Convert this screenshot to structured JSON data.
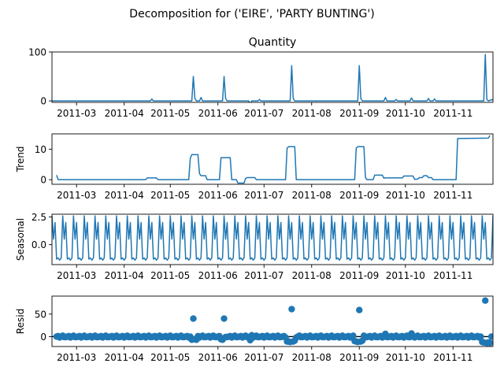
{
  "figure": {
    "suptitle": "Decomposition for ('EIRE', 'PARTY BUNTING')"
  },
  "chart_data": [
    {
      "type": "line",
      "panel": "observed",
      "title": "Quantity",
      "ylabel": "",
      "ylim": [
        -3,
        100
      ],
      "yticks": [
        0,
        100
      ],
      "xlim": [
        "2011-02-13",
        "2011-11-27"
      ],
      "xticks": [
        "2011-03",
        "2011-04",
        "2011-05",
        "2011-06",
        "2011-07",
        "2011-08",
        "2011-09",
        "2011-10",
        "2011-11"
      ],
      "color": "#1f77b4",
      "points": [
        [
          "2011-02-13",
          0
        ],
        [
          "2011-04-18",
          0
        ],
        [
          "2011-04-19",
          4
        ],
        [
          "2011-04-20",
          0
        ],
        [
          "2011-05-15",
          0
        ],
        [
          "2011-05-16",
          50
        ],
        [
          "2011-05-17",
          5
        ],
        [
          "2011-05-18",
          0
        ],
        [
          "2011-05-20",
          0
        ],
        [
          "2011-05-21",
          7
        ],
        [
          "2011-05-22",
          0
        ],
        [
          "2011-06-04",
          0
        ],
        [
          "2011-06-05",
          50
        ],
        [
          "2011-06-06",
          5
        ],
        [
          "2011-06-07",
          0
        ],
        [
          "2011-06-21",
          0
        ],
        [
          "2011-06-22",
          -8
        ],
        [
          "2011-06-23",
          0
        ],
        [
          "2011-06-27",
          0
        ],
        [
          "2011-06-28",
          3
        ],
        [
          "2011-06-29",
          0
        ],
        [
          "2011-07-18",
          0
        ],
        [
          "2011-07-19",
          72
        ],
        [
          "2011-07-20",
          5
        ],
        [
          "2011-07-21",
          0
        ],
        [
          "2011-08-31",
          0
        ],
        [
          "2011-09-01",
          72
        ],
        [
          "2011-09-02",
          5
        ],
        [
          "2011-09-03",
          0
        ],
        [
          "2011-09-17",
          0
        ],
        [
          "2011-09-18",
          7
        ],
        [
          "2011-09-19",
          0
        ],
        [
          "2011-09-24",
          0
        ],
        [
          "2011-09-25",
          3
        ],
        [
          "2011-09-26",
          0
        ],
        [
          "2011-10-04",
          0
        ],
        [
          "2011-10-05",
          6
        ],
        [
          "2011-10-06",
          0
        ],
        [
          "2011-10-15",
          0
        ],
        [
          "2011-10-16",
          5
        ],
        [
          "2011-10-17",
          0
        ],
        [
          "2011-10-19",
          0
        ],
        [
          "2011-10-20",
          4
        ],
        [
          "2011-10-21",
          0
        ],
        [
          "2011-11-21",
          0
        ],
        [
          "2011-11-22",
          95
        ],
        [
          "2011-11-23",
          3
        ],
        [
          "2011-11-24",
          0
        ],
        [
          "2011-11-27",
          3
        ]
      ]
    },
    {
      "type": "line",
      "panel": "trend",
      "title": "",
      "ylabel": "Trend",
      "ylim": [
        -1.5,
        15
      ],
      "yticks": [
        0,
        10
      ],
      "xlim": [
        "2011-02-13",
        "2011-11-27"
      ],
      "xticks": [
        "2011-03",
        "2011-04",
        "2011-05",
        "2011-06",
        "2011-07",
        "2011-08",
        "2011-09",
        "2011-10",
        "2011-11"
      ],
      "color": "#1f77b4",
      "points": [
        [
          "2011-02-16",
          1.5
        ],
        [
          "2011-02-17",
          0
        ],
        [
          "2011-04-15",
          0
        ],
        [
          "2011-04-16",
          0.6
        ],
        [
          "2011-04-22",
          0.6
        ],
        [
          "2011-04-23",
          0
        ],
        [
          "2011-05-13",
          0
        ],
        [
          "2011-05-14",
          7
        ],
        [
          "2011-05-15",
          8.2
        ],
        [
          "2011-05-19",
          8.2
        ],
        [
          "2011-05-20",
          2
        ],
        [
          "2011-05-21",
          1.3
        ],
        [
          "2011-05-24",
          1.3
        ],
        [
          "2011-05-25",
          0
        ],
        [
          "2011-06-02",
          0
        ],
        [
          "2011-06-03",
          7.2
        ],
        [
          "2011-06-09",
          7.2
        ],
        [
          "2011-06-10",
          0
        ],
        [
          "2011-06-13",
          0
        ],
        [
          "2011-06-14",
          -1.1
        ],
        [
          "2011-06-18",
          -1.1
        ],
        [
          "2011-06-19",
          0.4
        ],
        [
          "2011-06-20",
          0.7
        ],
        [
          "2011-06-25",
          0.7
        ],
        [
          "2011-06-26",
          0
        ],
        [
          "2011-07-15",
          0
        ],
        [
          "2011-07-16",
          10.3
        ],
        [
          "2011-07-17",
          10.8
        ],
        [
          "2011-07-21",
          10.8
        ],
        [
          "2011-07-22",
          0
        ],
        [
          "2011-08-29",
          0
        ],
        [
          "2011-08-30",
          10.3
        ],
        [
          "2011-08-31",
          10.8
        ],
        [
          "2011-09-04",
          10.8
        ],
        [
          "2011-09-05",
          0.7
        ],
        [
          "2011-09-06",
          0
        ],
        [
          "2011-09-10",
          0
        ],
        [
          "2011-09-11",
          1.5
        ],
        [
          "2011-09-16",
          1.5
        ],
        [
          "2011-09-17",
          0.5
        ],
        [
          "2011-09-18",
          0.6
        ],
        [
          "2011-09-29",
          0.6
        ],
        [
          "2011-09-30",
          1.2
        ],
        [
          "2011-10-06",
          1.2
        ],
        [
          "2011-10-07",
          0.1
        ],
        [
          "2011-10-09",
          0.2
        ],
        [
          "2011-10-10",
          0.7
        ],
        [
          "2011-10-12",
          0.7
        ],
        [
          "2011-10-13",
          1.3
        ],
        [
          "2011-10-15",
          1.3
        ],
        [
          "2011-10-16",
          0.7
        ],
        [
          "2011-10-18",
          0.7
        ],
        [
          "2011-10-19",
          0
        ],
        [
          "2011-11-03",
          0
        ],
        [
          "2011-11-04",
          13.5
        ],
        [
          "2011-11-24",
          13.6
        ],
        [
          "2011-11-25",
          14.5
        ]
      ]
    },
    {
      "type": "line",
      "panel": "seasonal",
      "title": "",
      "ylabel": "Seasonal",
      "ylim": [
        -1.8,
        2.75
      ],
      "yticks": [
        0.0,
        2.5
      ],
      "ytick_labels": [
        "0.0",
        "2.5"
      ],
      "xlim": [
        "2011-02-13",
        "2011-11-27"
      ],
      "xticks": [
        "2011-03",
        "2011-04",
        "2011-05",
        "2011-06",
        "2011-07",
        "2011-08",
        "2011-09",
        "2011-10",
        "2011-11"
      ],
      "color": "#1f77b4",
      "start": "2011-02-13",
      "end": "2011-11-27",
      "pattern": [
        2.6,
        0.5,
        2.0,
        -1.3,
        -1.2,
        -1.4,
        -1.2
      ]
    },
    {
      "type": "scatter",
      "panel": "resid",
      "title": "",
      "ylabel": "Resid",
      "ylim": [
        -22,
        90
      ],
      "yticks": [
        0,
        50
      ],
      "xlim": [
        "2011-02-13",
        "2011-11-27"
      ],
      "xticks": [
        "2011-03",
        "2011-04",
        "2011-05",
        "2011-06",
        "2011-07",
        "2011-08",
        "2011-09",
        "2011-10",
        "2011-11"
      ],
      "color": "#1f77b4",
      "baseline": 0,
      "start": "2011-02-16",
      "end": "2011-11-26",
      "pattern": [
        0,
        1,
        -2,
        0,
        2,
        -1,
        -1
      ],
      "highlights": [
        [
          "2011-05-16",
          40
        ],
        [
          "2011-05-15",
          -7
        ],
        [
          "2011-05-17",
          -6
        ],
        [
          "2011-05-18",
          -7
        ],
        [
          "2011-06-05",
          40
        ],
        [
          "2011-06-03",
          -6
        ],
        [
          "2011-06-04",
          -7
        ],
        [
          "2011-06-22",
          -8
        ],
        [
          "2011-06-23",
          3
        ],
        [
          "2011-07-19",
          61
        ],
        [
          "2011-07-16",
          -11
        ],
        [
          "2011-07-17",
          -11
        ],
        [
          "2011-07-18",
          -12
        ],
        [
          "2011-07-20",
          -11
        ],
        [
          "2011-07-21",
          -9
        ],
        [
          "2011-09-01",
          59
        ],
        [
          "2011-08-29",
          -10
        ],
        [
          "2011-08-30",
          -11
        ],
        [
          "2011-08-31",
          -12
        ],
        [
          "2011-09-02",
          -11
        ],
        [
          "2011-09-03",
          -9
        ],
        [
          "2011-09-18",
          6
        ],
        [
          "2011-10-05",
          7
        ],
        [
          "2011-11-22",
          80
        ],
        [
          "2011-11-20",
          -12
        ],
        [
          "2011-11-21",
          -13
        ],
        [
          "2011-11-23",
          -14
        ],
        [
          "2011-11-24",
          -13
        ],
        [
          "2011-11-25",
          -14
        ]
      ]
    }
  ]
}
